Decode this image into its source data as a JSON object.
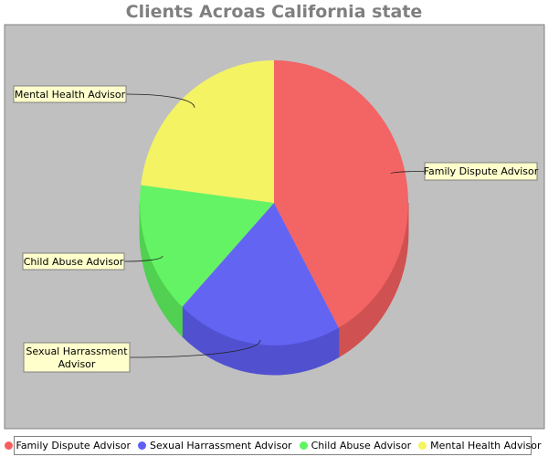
{
  "chart_data": {
    "type": "pie",
    "title": "Clients Acroas California state",
    "categories": [
      "Family Dispute Advisor",
      "Sexual Harrassment Advisor",
      "Child Abuse Advisor",
      "Mental Health Advisor"
    ],
    "values": [
      42,
      20,
      15,
      23
    ],
    "colors": [
      "#f55f5f",
      "#5f5ff5",
      "#5ff55f",
      "#f5f55f"
    ],
    "labels": [
      "Family Dispute Advisor",
      "Sexual Harrassment\nAdvisor",
      "Child Abuse Advisor",
      "Mental Health Advisor"
    ],
    "legend_position": "bottom",
    "plot_background": "#c0c0c0",
    "label_background": "#ffffcc"
  }
}
